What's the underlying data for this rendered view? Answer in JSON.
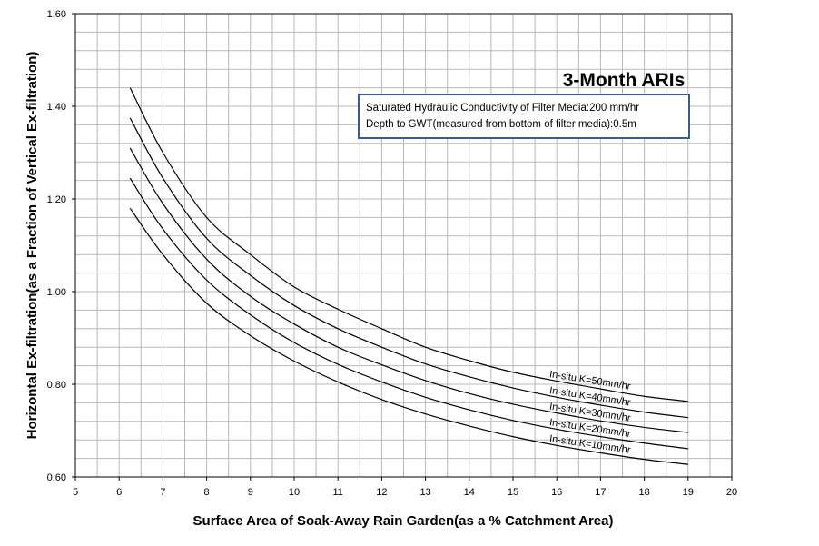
{
  "chart_data": {
    "type": "line",
    "title": "3-Month ARIs",
    "xlabel": "Surface Area of Soak-Away Rain Garden(as a %  Catchment Area)",
    "ylabel": "Horizontal Ex-filtration(as a Fraction of Vertical Ex-filtration)",
    "xlim": [
      5,
      20
    ],
    "ylim": [
      0.6,
      1.6
    ],
    "x_ticks": [
      "5",
      "6",
      "7",
      "8",
      "9",
      "10",
      "11",
      "12",
      "13",
      "14",
      "15",
      "16",
      "17",
      "18",
      "19",
      "20"
    ],
    "y_ticks": [
      "0.60",
      "0.80",
      "1.00",
      "1.20",
      "1.40",
      "1.60"
    ],
    "grid": true,
    "annotation_lines": [
      "Saturated Hydraulic Conductivity of Filter Media:200 mm/hr",
      "Depth to GWT(measured from bottom of filter media):0.5m"
    ],
    "x": [
      6.25,
      7,
      8,
      9,
      10,
      11,
      12,
      13,
      14,
      15,
      16,
      17,
      18,
      19
    ],
    "series": [
      {
        "name": "In-situ K=50mm/hr",
        "values": [
          1.44,
          1.3,
          1.16,
          1.08,
          1.01,
          0.962,
          0.92,
          0.88,
          0.851,
          0.826,
          0.807,
          0.79,
          0.774,
          0.763
        ]
      },
      {
        "name": "In-situ K=40mm/hr",
        "values": [
          1.375,
          1.245,
          1.115,
          1.035,
          0.97,
          0.92,
          0.88,
          0.844,
          0.816,
          0.792,
          0.772,
          0.755,
          0.74,
          0.728
        ]
      },
      {
        "name": "In-situ K=30mm/hr",
        "values": [
          1.31,
          1.19,
          1.07,
          0.99,
          0.93,
          0.88,
          0.842,
          0.808,
          0.78,
          0.757,
          0.738,
          0.721,
          0.707,
          0.696
        ]
      },
      {
        "name": "In-situ K=20mm/hr",
        "values": [
          1.245,
          1.135,
          1.025,
          0.95,
          0.89,
          0.843,
          0.805,
          0.772,
          0.745,
          0.722,
          0.703,
          0.687,
          0.673,
          0.661
        ]
      },
      {
        "name": "In-situ K=10mm/hr",
        "values": [
          1.18,
          1.08,
          0.975,
          0.905,
          0.85,
          0.805,
          0.767,
          0.736,
          0.71,
          0.687,
          0.668,
          0.652,
          0.638,
          0.627
        ]
      }
    ]
  }
}
